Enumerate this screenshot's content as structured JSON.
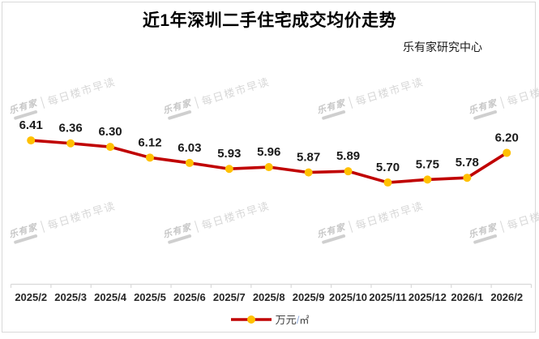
{
  "title": "近1年深圳二手住宅成交均价走势",
  "subtitle": "乐有家研究中心",
  "watermark": {
    "brand": "乐有家",
    "text": "每日楼市早读"
  },
  "legend": {
    "unit": "万元",
    "slash": "/",
    "per": "㎡",
    "full_label": "万元/㎡"
  },
  "colors": {
    "line": "#C00000",
    "marker": "#FFC000",
    "axis": "#D9D9D9",
    "label": "#1a1a1a",
    "tick_label": "#262626"
  },
  "chart_data": {
    "type": "line",
    "title": "近1年深圳二手住宅成交均价走势",
    "categories": [
      "2025/2",
      "2025/3",
      "2025/4",
      "2025/5",
      "2025/6",
      "2025/7",
      "2025/8",
      "2025/9",
      "2025/10",
      "2025/11",
      "2025/12",
      "2026/1",
      "2026/2"
    ],
    "series": [
      {
        "name": "万元/㎡",
        "values": [
          6.41,
          6.36,
          6.3,
          6.12,
          6.03,
          5.93,
          5.96,
          5.87,
          5.89,
          5.7,
          5.75,
          5.78,
          6.2
        ]
      }
    ],
    "data_labels": true,
    "legend_position": "bottom",
    "y_axis": "hidden",
    "grid": false
  }
}
